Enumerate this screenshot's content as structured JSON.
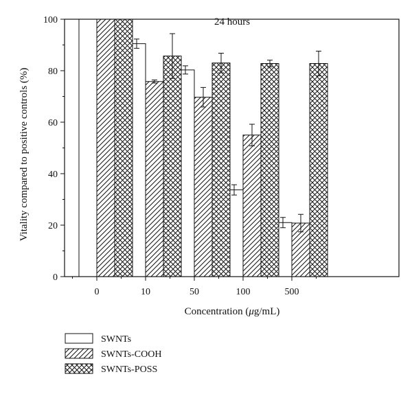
{
  "chart_data": {
    "type": "bar",
    "title": "24 hours",
    "xlabel": "Concentration (μg/mL)",
    "xlabel_parts": [
      "Concentration (",
      "μ",
      "g/mL)"
    ],
    "ylabel": "Vitality compared to positive controls (%)",
    "ylim": [
      0,
      100
    ],
    "yticks": [
      0,
      20,
      40,
      60,
      80,
      100
    ],
    "categories": [
      "0",
      "10",
      "50",
      "100",
      "500"
    ],
    "legend_position": "bottom-left",
    "series": [
      {
        "name": "SWNTs",
        "pattern": "open",
        "values": [
          100,
          90.5,
          80.3,
          33.7,
          21.0
        ],
        "errors": [
          0,
          1.8,
          1.6,
          2.0,
          2.0
        ]
      },
      {
        "name": "SWNTs-COOH",
        "pattern": "hatched",
        "values": [
          100,
          75.8,
          69.7,
          55.0,
          20.8
        ],
        "errors": [
          0,
          0.6,
          3.8,
          4.2,
          3.4
        ]
      },
      {
        "name": "SWNTs-POSS",
        "pattern": "crosshatched",
        "values": [
          100,
          85.7,
          83.0,
          82.8,
          82.8
        ],
        "errors": [
          0,
          8.7,
          3.8,
          1.3,
          4.8
        ]
      }
    ]
  }
}
